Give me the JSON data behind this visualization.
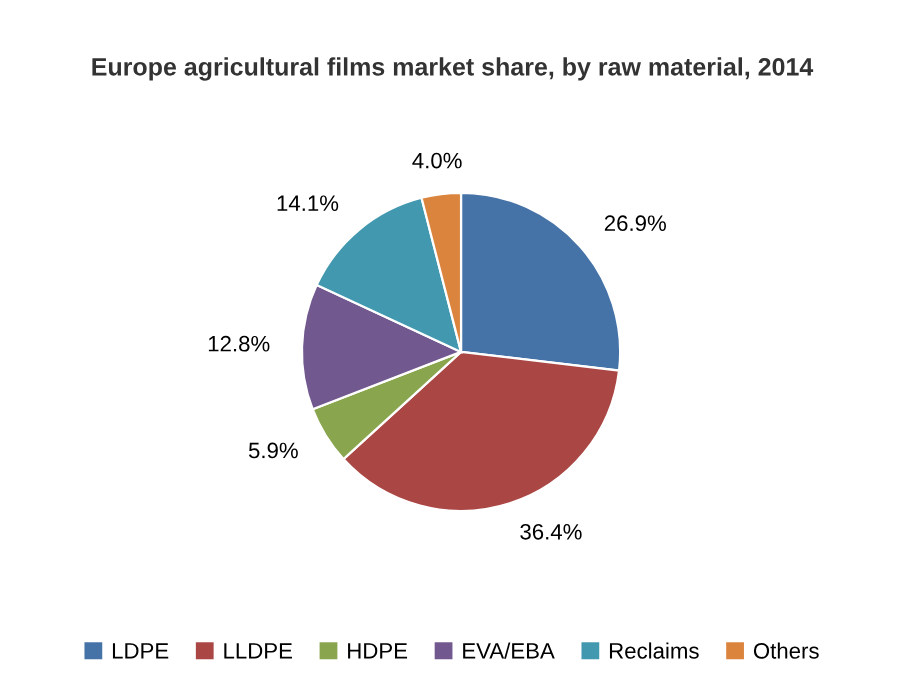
{
  "chart_data": {
    "type": "pie",
    "title": "Europe agricultural films market share, by raw material, 2014",
    "categories": [
      "LDPE",
      "LLDPE",
      "HDPE",
      "EVA/EBA",
      "Reclaims",
      "Others"
    ],
    "values": [
      26.9,
      36.4,
      5.9,
      12.8,
      14.1,
      4.0
    ],
    "value_labels": [
      "26.9%",
      "36.4%",
      "5.9%",
      "12.8%",
      "14.1%",
      "4.0%"
    ],
    "colors": [
      "#4572a7",
      "#aa4643",
      "#89a54e",
      "#71588f",
      "#4198af",
      "#db843d"
    ],
    "legend": "bottom"
  }
}
